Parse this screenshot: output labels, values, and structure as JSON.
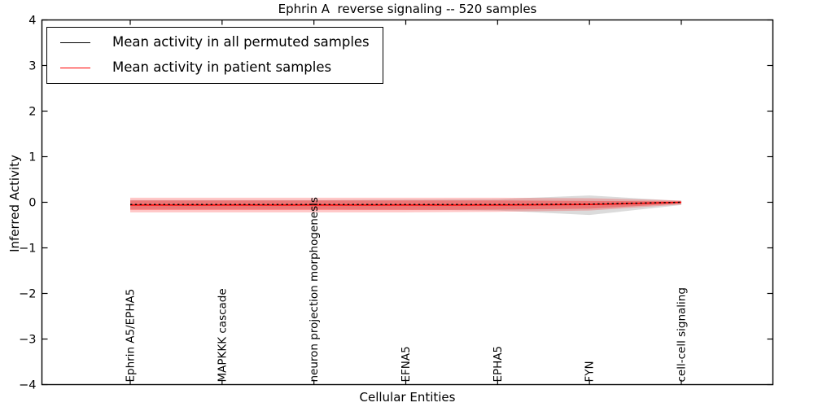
{
  "chart_data": {
    "type": "line",
    "title": "Ephrin A  reverse signaling -- 520 samples",
    "xlabel": "Cellular Entities",
    "ylabel": "Inferred Activity",
    "ylim": [
      -4,
      4
    ],
    "yticks": [
      4,
      3,
      2,
      1,
      0,
      -1,
      -2,
      -3,
      -4
    ],
    "grid": false,
    "categories": [
      "Ephrin A5/EPHA5",
      "MAPKKK cascade",
      "neuron projection morphogenesis",
      "EFNA5",
      "EPHA5",
      "FYN",
      "cell-cell signaling"
    ],
    "series": [
      {
        "name": "Mean activity in all permuted samples",
        "color": "#000000",
        "style": "dotted",
        "values": [
          -0.05,
          -0.05,
          -0.05,
          -0.05,
          -0.05,
          -0.04,
          0.0
        ]
      },
      {
        "name": "Mean activity in patient samples",
        "color": "#ff0000",
        "style": "solid",
        "values": [
          -0.06,
          -0.06,
          -0.06,
          -0.06,
          -0.06,
          -0.05,
          0.0
        ]
      }
    ],
    "bands": [
      {
        "name": "permuted-samples-spread-band",
        "color": "#999999",
        "opacity": 0.35,
        "upper": [
          0.05,
          0.05,
          0.05,
          0.06,
          0.07,
          0.15,
          0.03
        ],
        "lower": [
          -0.15,
          -0.15,
          -0.15,
          -0.16,
          -0.18,
          -0.28,
          -0.06
        ]
      },
      {
        "name": "patient-samples-outer-band",
        "color": "#ff0000",
        "opacity": 0.22,
        "upper": [
          0.1,
          0.1,
          0.1,
          0.1,
          0.1,
          0.09,
          0.04
        ],
        "lower": [
          -0.22,
          -0.22,
          -0.22,
          -0.22,
          -0.21,
          -0.18,
          -0.05
        ]
      },
      {
        "name": "patient-samples-inner-band",
        "color": "#ff0000",
        "opacity": 0.3,
        "upper": [
          0.04,
          0.04,
          0.04,
          0.04,
          0.04,
          0.03,
          0.02
        ],
        "lower": [
          -0.17,
          -0.17,
          -0.17,
          -0.17,
          -0.16,
          -0.14,
          -0.03
        ]
      }
    ],
    "legend": {
      "position": "upper-left",
      "entries": [
        "Mean activity in all permuted samples",
        "Mean activity in patient samples"
      ]
    }
  }
}
